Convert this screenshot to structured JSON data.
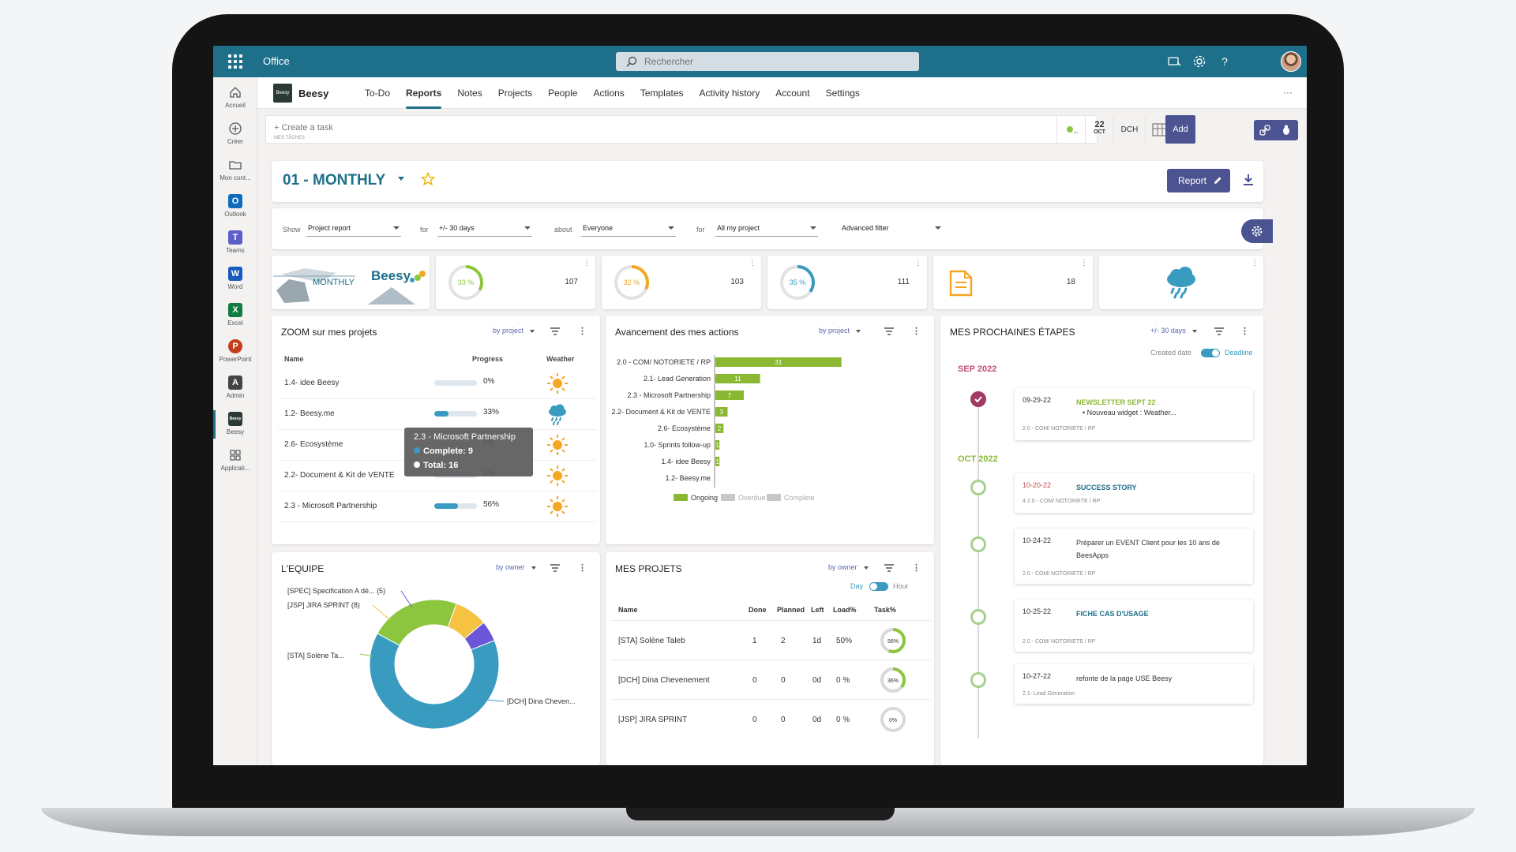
{
  "office": {
    "title": "Office",
    "search_placeholder": "Rechercher"
  },
  "rail": [
    {
      "label": "Accueil",
      "icon": "home-icon",
      "color": "#555"
    },
    {
      "label": "Créer",
      "icon": "plus-circle-icon",
      "color": "#555"
    },
    {
      "label": "Mon cont...",
      "icon": "folder-icon",
      "color": "#555"
    },
    {
      "label": "Outlook",
      "icon": "outlook-icon",
      "color": "#0f6cbd"
    },
    {
      "label": "Teams",
      "icon": "teams-icon",
      "color": "#5b5fc7"
    },
    {
      "label": "Word",
      "icon": "word-icon",
      "color": "#185abd"
    },
    {
      "label": "Excel",
      "icon": "excel-icon",
      "color": "#107c41"
    },
    {
      "label": "PowerPoint",
      "icon": "powerpoint-icon",
      "color": "#c43e1c"
    },
    {
      "label": "Admin",
      "icon": "admin-icon",
      "color": "#444"
    },
    {
      "label": "Beesy",
      "icon": "beesy-icon",
      "color": "#2b3b34"
    },
    {
      "label": "Applicati...",
      "icon": "apps-icon",
      "color": "#555"
    }
  ],
  "app": {
    "name": "Beesy",
    "logo_text": "Beesy",
    "tabs": [
      "To-Do",
      "Reports",
      "Notes",
      "Projects",
      "People",
      "Actions",
      "Templates",
      "Activity history",
      "Account",
      "Settings"
    ],
    "active_tab": "Reports",
    "more": "···"
  },
  "task_bar": {
    "placeholder": "+ Create a task",
    "sub": "MES TÂCHES",
    "day": "22",
    "month": "OCT",
    "initials": "DCH",
    "add_label": "Add"
  },
  "report": {
    "title": "01 - MONTHLY",
    "button_label": "Report"
  },
  "filters": {
    "show_label": "Show",
    "show_value": "Project report",
    "for_label": "for",
    "for_value": "+/- 30 days",
    "about_label": "about",
    "about_value": "Everyone",
    "for2_label": "for",
    "for2_value": "All my project",
    "advanced": "Advanced filter"
  },
  "kpis": {
    "banner_monthly": "MONTHLY",
    "banner_brand": "Beesy",
    "tiles": [
      {
        "pct_label": "33 %",
        "pct": 33,
        "count": "107",
        "color": "#8cc63f"
      },
      {
        "pct_label": "32 %",
        "pct": 32,
        "count": "103",
        "color": "#f5a623"
      },
      {
        "pct_label": "35 %",
        "pct": 35,
        "count": "111",
        "color": "#3a9bc1"
      },
      {
        "count": "18"
      }
    ]
  },
  "zoom": {
    "title": "ZOOM sur mes projets",
    "ctrl": "by project",
    "headers": {
      "name": "Name",
      "progress": "Progress",
      "weather": "Weather"
    },
    "rows": [
      {
        "name": "1.4- idee Beesy",
        "pct_label": "0%",
        "pct": 0,
        "weather": "sun-icon"
      },
      {
        "name": "1.2- Beesy.me",
        "pct_label": "33%",
        "pct": 33,
        "weather": "rain-cloud-icon"
      },
      {
        "name": "2.6- Ecosystème",
        "pct_label": "0%",
        "pct": 0,
        "weather": "sun-icon"
      },
      {
        "name": "2.2- Document & Kit de VENTE",
        "pct_label": "0%",
        "pct": 0,
        "weather": "sun-icon"
      },
      {
        "name": "2.3 - Microsoft Partnership",
        "pct_label": "56%",
        "pct": 56,
        "weather": "sun-icon"
      }
    ],
    "tooltip": {
      "title": "2.3 - Microsoft Partnership",
      "complete": "Complete: 9",
      "total": "Total: 16"
    }
  },
  "avancement": {
    "title": "Avancement des mes actions",
    "ctrl": "by project"
  },
  "chart_data": [
    {
      "type": "bar",
      "orientation": "horizontal",
      "title": "Avancement des mes actions",
      "categories": [
        "2.0 - COM/ NOTORIETE / RP",
        "2.1- Lead Generation",
        "2.3 -  Microsoft Partnership",
        "2.2- Document & Kit de VENTE",
        "2.6- Ecosystème",
        "1.0- Sprints follow-up",
        "1.4- idee Beesy",
        "1.2- Beesy.me"
      ],
      "series": [
        {
          "name": "Ongoing",
          "color": "#8ab833",
          "values": [
            31,
            11,
            7,
            3,
            2,
            1,
            1,
            0
          ]
        },
        {
          "name": "Overdue",
          "color": "#c8c8c8",
          "values": [
            0,
            0,
            0,
            0,
            0,
            0,
            0,
            0
          ]
        },
        {
          "name": "Complete",
          "color": "#c8c8c8",
          "values": [
            0,
            0,
            0,
            0,
            0,
            0,
            0,
            0
          ]
        }
      ],
      "xlim": [
        0,
        33
      ],
      "legend": "bottom"
    },
    {
      "type": "pie",
      "title": "L'EQUIPE",
      "donut": true,
      "slices": [
        {
          "label": "[DCH] Dina Cheven...",
          "value": 62,
          "color": "#3a9bc1"
        },
        {
          "label": "[STA] Solène Ta...",
          "value": 22,
          "color": "#8cc63f"
        },
        {
          "label": "[JSP] JIRA SPRINT (8)",
          "value": 8,
          "color": "#f5c242"
        },
        {
          "label": "[SPEC] Specification A dé... (5)",
          "value": 5,
          "color": "#6a56d6"
        }
      ]
    }
  ],
  "equipe": {
    "title": "L'EQUIPE",
    "ctrl": "by owner"
  },
  "projets": {
    "title": "MES PROJETS",
    "ctrl": "by owner",
    "toggle_left": "Day",
    "toggle_right": "Hour",
    "headers": [
      "Name",
      "Done",
      "Planned",
      "Left",
      "Load%",
      "Task%"
    ],
    "rows": [
      {
        "name": "[STA] Solène Taleb",
        "done": "1",
        "planned": "2",
        "left": "1d",
        "load": "50%",
        "task_label": "56%",
        "task": 56,
        "color": "#8cc63f"
      },
      {
        "name": "[DCH] Dina Chevenement",
        "done": "0",
        "planned": "0",
        "left": "0d",
        "load": "0 %",
        "task_label": "36%",
        "task": 36,
        "color": "#8cc63f"
      },
      {
        "name": "[JSP] JIRA SPRINT",
        "done": "0",
        "planned": "0",
        "left": "0d",
        "load": "0 %",
        "task_label": "0%",
        "task": 0,
        "color": "#f5b800"
      }
    ]
  },
  "etapes": {
    "title": "MES PROCHAINES ÉTAPES",
    "ctrl": "+/- 30 days",
    "created_label": "Created date",
    "deadline_label": "Deadline",
    "months": [
      "SEP 2022",
      "OCT 2022"
    ],
    "items": [
      {
        "date": "09-29-22",
        "title": "NEWSLETTER SEPT 22",
        "bullet": "Nouveau widget : Weather...",
        "sub": "2.0 - COM/ NOTORIETE / RP",
        "done": true
      },
      {
        "date": "10-20-22",
        "title": "SUCCESS STORY",
        "sub": "4  2.0 - COM/ NOTORIETE / RP"
      },
      {
        "date": "10-24-22",
        "title": "Préparer un EVENT Client pour les 10 ans de BeesApps",
        "sub": "2.0 - COM/ NOTORIETE / RP"
      },
      {
        "date": "10-25-22",
        "title": "FICHE CAS D'USAGE",
        "sub": "2.0 - COM/ NOTORIETE / RP"
      },
      {
        "date": "10-27-22",
        "title": "refonte de la page USE Beesy",
        "sub": "2.1- Lead Generation"
      }
    ]
  }
}
